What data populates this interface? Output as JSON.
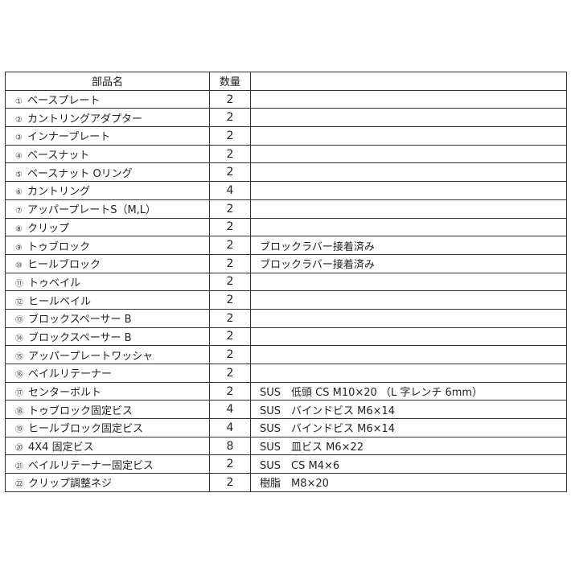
{
  "headers": {
    "name": "部品名",
    "qty": "数量",
    "note": ""
  },
  "rows": [
    {
      "num": "①",
      "name": "ベースプレート",
      "qty": "2",
      "note": ""
    },
    {
      "num": "②",
      "name": "カントリングアダプター",
      "qty": "2",
      "note": ""
    },
    {
      "num": "③",
      "name": "インナープレート",
      "qty": "2",
      "note": ""
    },
    {
      "num": "④",
      "name": "ベースナット",
      "qty": "2",
      "note": ""
    },
    {
      "num": "⑤",
      "name": "ベースナット Oリング",
      "qty": "2",
      "note": ""
    },
    {
      "num": "⑥",
      "name": "カントリング",
      "qty": "4",
      "note": ""
    },
    {
      "num": "⑦",
      "name": "アッパープレートS（M,L）",
      "qty": "2",
      "note": ""
    },
    {
      "num": "⑧",
      "name": "クリップ",
      "qty": "2",
      "note": ""
    },
    {
      "num": "⑨",
      "name": "トゥブロック",
      "qty": "2",
      "note": "ブロックラバー接着済み"
    },
    {
      "num": "⑩",
      "name": "ヒールブロック",
      "qty": "2",
      "note": "ブロックラバー接着済み"
    },
    {
      "num": "⑪",
      "name": "トゥベイル",
      "qty": "2",
      "note": ""
    },
    {
      "num": "⑫",
      "name": "ヒールベイル",
      "qty": "2",
      "note": ""
    },
    {
      "num": "⑬",
      "name": "ブロックスペーサー B",
      "qty": "2",
      "note": ""
    },
    {
      "num": "⑭",
      "name": "ブロックスペーサー B",
      "qty": "2",
      "note": ""
    },
    {
      "num": "⑮",
      "name": "アッパープレートワッシャ",
      "qty": "2",
      "note": ""
    },
    {
      "num": "⑯",
      "name": "ベイルリテーナー",
      "qty": "2",
      "note": ""
    },
    {
      "num": "⑰",
      "name": "センターボルト",
      "qty": "2",
      "note": "SUS　低頭 CS M10×20 （L 字レンチ 6mm）"
    },
    {
      "num": "⑱",
      "name": "トゥブロック固定ビス",
      "qty": "4",
      "note": "SUS　バインドビス M6×14"
    },
    {
      "num": "⑲",
      "name": "ヒールブロック固定ビス",
      "qty": "4",
      "note": "SUS　バインドビス M6×14"
    },
    {
      "num": "⑳",
      "name": "4X4 固定ビス",
      "qty": "8",
      "note": "SUS　皿ビス M6×22"
    },
    {
      "num": "㉑",
      "name": "ベイルリテーナー固定ビス",
      "qty": "2",
      "note": "SUS　CS M4×6"
    },
    {
      "num": "㉒",
      "name": "クリップ調整ネジ",
      "qty": "2",
      "note": "樹脂　M8×20"
    }
  ]
}
